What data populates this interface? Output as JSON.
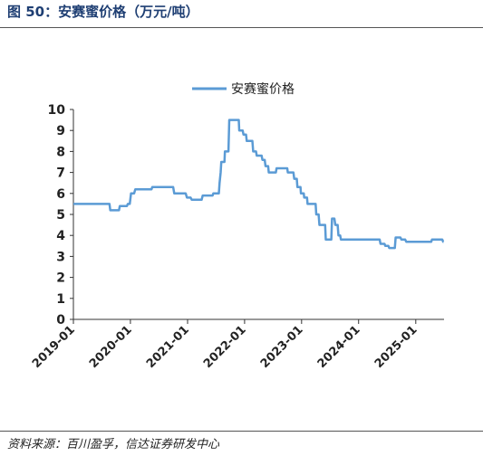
{
  "figure": {
    "title": "图 50：安赛蜜价格（万元/吨）",
    "source": "资料来源：百川盈孚，信达证券研发中心"
  },
  "chart_data": {
    "type": "line",
    "title": "",
    "xlabel": "",
    "ylabel": "",
    "ylim": [
      0,
      10
    ],
    "yticks": [
      0,
      1,
      2,
      3,
      4,
      5,
      6,
      7,
      8,
      9,
      10
    ],
    "xlim": [
      "2019-01",
      "2025-07"
    ],
    "xticks": [
      "2019-01",
      "2020-01",
      "2021-01",
      "2022-01",
      "2023-01",
      "2024-01",
      "2025-01"
    ],
    "grid": false,
    "legend_position": "top-center",
    "line_color": "#5b9bd5",
    "series": [
      {
        "name": "安赛蜜价格",
        "points": [
          [
            "2019-01-01",
            5.5
          ],
          [
            "2019-08-20",
            5.5
          ],
          [
            "2019-08-25",
            5.2
          ],
          [
            "2019-10-20",
            5.2
          ],
          [
            "2019-10-25",
            5.4
          ],
          [
            "2019-12-10",
            5.4
          ],
          [
            "2019-12-15",
            5.5
          ],
          [
            "2019-12-28",
            5.5
          ],
          [
            "2020-01-05",
            6.0
          ],
          [
            "2020-01-25",
            6.0
          ],
          [
            "2020-02-01",
            6.2
          ],
          [
            "2020-05-15",
            6.2
          ],
          [
            "2020-05-20",
            6.3
          ],
          [
            "2020-10-01",
            6.3
          ],
          [
            "2020-10-08",
            6.0
          ],
          [
            "2020-12-20",
            6.0
          ],
          [
            "2020-12-28",
            5.8
          ],
          [
            "2021-01-20",
            5.8
          ],
          [
            "2021-01-28",
            5.7
          ],
          [
            "2021-04-01",
            5.7
          ],
          [
            "2021-04-08",
            5.9
          ],
          [
            "2021-06-10",
            5.9
          ],
          [
            "2021-06-15",
            6.0
          ],
          [
            "2021-07-20",
            6.0
          ],
          [
            "2021-07-25",
            6.5
          ],
          [
            "2021-08-01",
            7.0
          ],
          [
            "2021-08-05",
            7.5
          ],
          [
            "2021-08-25",
            7.5
          ],
          [
            "2021-08-28",
            8.0
          ],
          [
            "2021-09-20",
            8.0
          ],
          [
            "2021-09-25",
            9.5
          ],
          [
            "2021-11-25",
            9.5
          ],
          [
            "2021-11-28",
            9.0
          ],
          [
            "2021-12-20",
            9.0
          ],
          [
            "2021-12-25",
            8.8
          ],
          [
            "2022-01-10",
            8.8
          ],
          [
            "2022-01-15",
            8.5
          ],
          [
            "2022-02-20",
            8.5
          ],
          [
            "2022-02-25",
            8.0
          ],
          [
            "2022-03-15",
            8.0
          ],
          [
            "2022-03-20",
            7.8
          ],
          [
            "2022-04-20",
            7.8
          ],
          [
            "2022-04-25",
            7.6
          ],
          [
            "2022-05-10",
            7.6
          ],
          [
            "2022-05-15",
            7.3
          ],
          [
            "2022-06-01",
            7.3
          ],
          [
            "2022-06-05",
            7.0
          ],
          [
            "2022-07-20",
            7.0
          ],
          [
            "2022-07-25",
            7.2
          ],
          [
            "2022-10-01",
            7.2
          ],
          [
            "2022-10-05",
            7.0
          ],
          [
            "2022-11-10",
            7.0
          ],
          [
            "2022-11-15",
            6.7
          ],
          [
            "2022-12-01",
            6.7
          ],
          [
            "2022-12-05",
            6.3
          ],
          [
            "2022-12-25",
            6.3
          ],
          [
            "2022-12-28",
            6.0
          ],
          [
            "2023-01-15",
            6.0
          ],
          [
            "2023-01-18",
            5.8
          ],
          [
            "2023-02-05",
            5.8
          ],
          [
            "2023-02-08",
            5.5
          ],
          [
            "2023-04-01",
            5.5
          ],
          [
            "2023-04-05",
            5.0
          ],
          [
            "2023-04-20",
            5.0
          ],
          [
            "2023-04-25",
            4.5
          ],
          [
            "2023-06-01",
            4.5
          ],
          [
            "2023-06-05",
            3.8
          ],
          [
            "2023-07-10",
            3.8
          ],
          [
            "2023-07-15",
            4.8
          ],
          [
            "2023-07-30",
            4.8
          ],
          [
            "2023-08-05",
            4.5
          ],
          [
            "2023-08-20",
            4.5
          ],
          [
            "2023-08-25",
            4.0
          ],
          [
            "2023-09-05",
            4.0
          ],
          [
            "2023-09-10",
            3.8
          ],
          [
            "2024-05-15",
            3.8
          ],
          [
            "2024-05-20",
            3.6
          ],
          [
            "2024-06-15",
            3.6
          ],
          [
            "2024-06-20",
            3.5
          ],
          [
            "2024-07-10",
            3.5
          ],
          [
            "2024-07-15",
            3.4
          ],
          [
            "2024-08-20",
            3.4
          ],
          [
            "2024-08-25",
            3.9
          ],
          [
            "2024-09-25",
            3.9
          ],
          [
            "2024-10-01",
            3.8
          ],
          [
            "2024-10-25",
            3.8
          ],
          [
            "2024-11-01",
            3.7
          ],
          [
            "2025-04-10",
            3.7
          ],
          [
            "2025-04-15",
            3.8
          ],
          [
            "2025-06-20",
            3.8
          ],
          [
            "2025-06-25",
            3.7
          ],
          [
            "2025-06-28",
            3.7
          ]
        ]
      }
    ]
  }
}
